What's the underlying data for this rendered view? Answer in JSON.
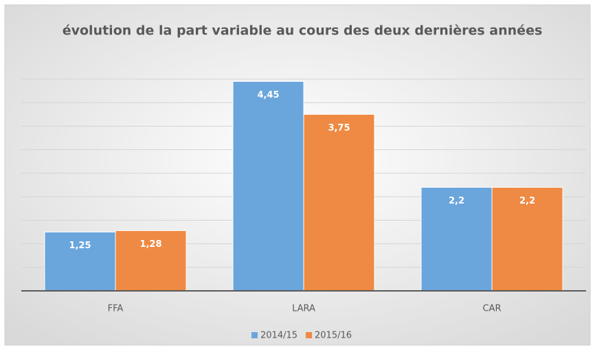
{
  "chart_data": {
    "type": "bar",
    "title": "évolution de la part variable au cours des deux dernières années",
    "categories": [
      "FFA",
      "LARA",
      "CAR"
    ],
    "series": [
      {
        "name": "2014/15",
        "color": "#6aa5dc",
        "values": [
          1.25,
          4.45,
          2.2
        ],
        "value_labels": [
          "1,25",
          "4,45",
          "2,2"
        ]
      },
      {
        "name": "2015/16",
        "color": "#ee8a43",
        "values": [
          1.28,
          3.75,
          2.2
        ],
        "value_labels": [
          "1,28",
          "3,75",
          "2,2"
        ]
      }
    ],
    "ylim": [
      0,
      4.5
    ],
    "yticks": [
      0,
      0.5,
      1,
      1.5,
      2,
      2.5,
      3,
      3.5,
      4,
      4.5
    ],
    "grid": true,
    "legend": "bottom"
  }
}
